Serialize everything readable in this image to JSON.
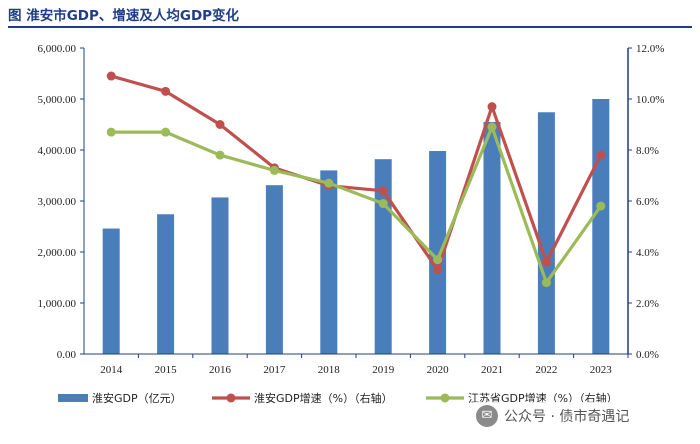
{
  "figure_title": "图  淮安市GDP、增速及人均GDP变化",
  "watermark": {
    "icon": "wechat-icon",
    "text": "公众号 · 债市奇遇记"
  },
  "colors": {
    "bar": "#4a7ebb",
    "huaian_line": "#c0504d",
    "jiangsu_line": "#9bbb59",
    "axis": "#1f3c88",
    "title": "#1f3c88"
  },
  "chart_data": {
    "type": "bar",
    "categories": [
      "2014",
      "2015",
      "2016",
      "2017",
      "2018",
      "2019",
      "2020",
      "2021",
      "2022",
      "2023"
    ],
    "left_axis": {
      "ylim": [
        0,
        6000
      ],
      "ticks": [
        "0.00",
        "1,000.00",
        "2,000.00",
        "3,000.00",
        "4,000.00",
        "5,000.00",
        "6,000.00"
      ]
    },
    "right_axis": {
      "ylim": [
        0,
        12
      ],
      "ticks": [
        "0.0%",
        "2.0%",
        "4.0%",
        "6.0%",
        "8.0%",
        "10.0%",
        "12.0%"
      ]
    },
    "series": [
      {
        "name": "淮安GDP（亿元）",
        "type": "bar",
        "axis": "left",
        "values": [
          2460,
          2740,
          3070,
          3310,
          3600,
          3820,
          3980,
          4550,
          4740,
          5000
        ]
      },
      {
        "name": "淮安GDP增速（%）（右轴）",
        "type": "line",
        "axis": "right",
        "values": [
          10.9,
          10.3,
          9.0,
          7.3,
          6.6,
          6.4,
          3.3,
          9.7,
          3.6,
          7.8
        ]
      },
      {
        "name": "江苏省GDP增速（%）（右轴）",
        "type": "line",
        "axis": "right",
        "values": [
          8.7,
          8.7,
          7.8,
          7.2,
          6.7,
          5.9,
          3.7,
          8.9,
          2.8,
          5.8
        ]
      }
    ],
    "legend": "bottom",
    "grid": false
  }
}
